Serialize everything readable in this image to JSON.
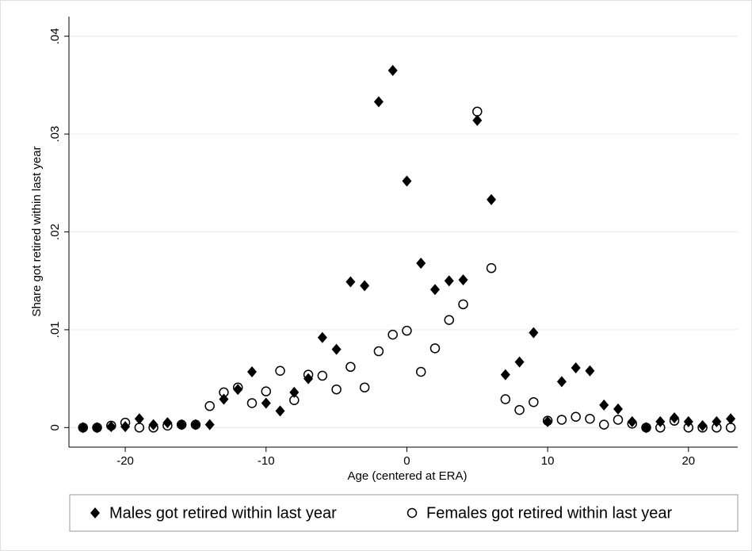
{
  "chart_data": {
    "type": "scatter",
    "x_label": "Age (centered at ERA)",
    "y_label": "Share got retired within last year",
    "x": [
      -23,
      -22,
      -21,
      -20,
      -19,
      -18,
      -17,
      -16,
      -15,
      -14,
      -13,
      -12,
      -11,
      -10,
      -9,
      -8,
      -7,
      -6,
      -5,
      -4,
      -3,
      -2,
      -1,
      0,
      1,
      2,
      3,
      4,
      5,
      6,
      7,
      8,
      9,
      10,
      11,
      12,
      13,
      14,
      15,
      16,
      17,
      18,
      19,
      20,
      21,
      22,
      23
    ],
    "series": [
      {
        "name": "Males got retired within last year",
        "color": "#000000",
        "marker": "diamond",
        "values": [
          0,
          0,
          0.0001,
          0.0001,
          0.0009,
          0.0003,
          0.0005,
          0.0003,
          0.0003,
          0.0003,
          0.0029,
          0.0039,
          0.0057,
          0.0025,
          0.0017,
          0.0036,
          0.005,
          0.0092,
          0.008,
          0.0149,
          0.0145,
          0.0333,
          0.0365,
          0.0252,
          0.0168,
          0.0141,
          0.015,
          0.0151,
          0.0314,
          0.0233,
          0.0054,
          0.0067,
          0.0097,
          0.0006,
          0.0047,
          0.0061,
          0.0058,
          0.0023,
          0.0019,
          0.0006,
          0,
          0.0006,
          0.001,
          0.0006,
          0.0002,
          0.0006,
          0.0009
        ]
      },
      {
        "name": "Females got retired within last year",
        "color": "#000000",
        "marker": "circle",
        "values": [
          0,
          0,
          0.0002,
          0.0005,
          0,
          0,
          0.0002,
          0.0003,
          0.0003,
          0.0022,
          0.0036,
          0.0041,
          0.0025,
          0.0037,
          0.0058,
          0.0028,
          0.0054,
          0.0053,
          0.0039,
          0.0062,
          0.0041,
          0.0078,
          0.0095,
          0.0099,
          0.0057,
          0.0081,
          0.011,
          0.0126,
          0.0323,
          0.0163,
          0.0029,
          0.0018,
          0.0026,
          0.0007,
          0.0008,
          0.0011,
          0.0009,
          0.0003,
          0.0008,
          0.0004,
          0,
          0,
          0.0007,
          0,
          0,
          0,
          0
        ]
      }
    ],
    "xlim": [
      -24,
      23.5
    ],
    "xticks": [
      -20,
      -10,
      0,
      10,
      20
    ],
    "ylim": [
      -0.002,
      0.042
    ],
    "yticks": [
      0,
      {
        "value": 0.01,
        "label": ".01"
      },
      {
        "value": 0.02,
        "label": ".02"
      },
      {
        "value": 0.03,
        "label": ".03"
      },
      {
        "value": 0.04,
        "label": ".04"
      }
    ],
    "grid": true,
    "legend": "bottom"
  }
}
